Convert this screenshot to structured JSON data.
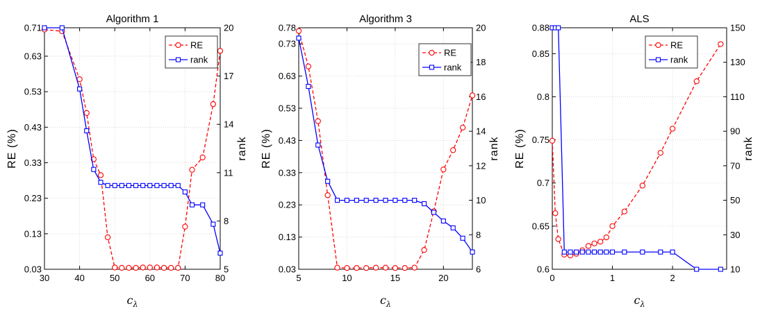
{
  "colors": {
    "re": "#ff0000",
    "rank": "#0000ff",
    "axis": "#000000",
    "grid": "#cfcfcf"
  },
  "chart_data": [
    {
      "type": "line",
      "title": "Algorithm 1",
      "xlabel": "c",
      "xlabel_sub": "λ",
      "ylabel": "RE (%)",
      "y2label": "rank",
      "xlim": [
        30,
        80
      ],
      "ylim": [
        0.03,
        0.71
      ],
      "y2lim": [
        5,
        20
      ],
      "xticks": [
        "30",
        "40",
        "50",
        "60",
        "70",
        "80"
      ],
      "yticks": [
        "0.03",
        "0.13",
        "0.23",
        "0.33",
        "0.43",
        "0.53",
        "0.63",
        "0.71"
      ],
      "y2ticks": [
        "5",
        "8",
        "11",
        "14",
        "17",
        "20"
      ],
      "grid": true,
      "legend": "top-right",
      "x": [
        30,
        35,
        40,
        42,
        44,
        46,
        48,
        50,
        52,
        54,
        56,
        58,
        60,
        62,
        64,
        66,
        68,
        70,
        72,
        75,
        78,
        80
      ],
      "series": [
        {
          "name": "RE",
          "axis": "left",
          "style": "dashed-circle",
          "values": [
            0.705,
            0.7,
            0.565,
            0.47,
            0.34,
            0.295,
            0.12,
            0.035,
            0.034,
            0.034,
            0.034,
            0.035,
            0.035,
            0.035,
            0.034,
            0.034,
            0.034,
            0.15,
            0.31,
            0.345,
            0.495,
            0.645
          ]
        },
        {
          "name": "rank",
          "axis": "right",
          "style": "solid-square",
          "values": [
            20,
            20,
            16.2,
            13.6,
            11.2,
            10.4,
            10.2,
            10.2,
            10.2,
            10.2,
            10.2,
            10.2,
            10.2,
            10.2,
            10.2,
            10.2,
            10.2,
            9.8,
            9,
            9,
            7.8,
            6
          ]
        }
      ]
    },
    {
      "type": "line",
      "title": "Algorithm 3",
      "xlabel": "c",
      "xlabel_sub": "λ",
      "ylabel": "RE (%)",
      "y2label": "rank",
      "xlim": [
        5,
        23
      ],
      "ylim": [
        0.03,
        0.78
      ],
      "y2lim": [
        6,
        20
      ],
      "xticks": [
        "5",
        "10",
        "15",
        "20"
      ],
      "yticks": [
        "0.03",
        "0.13",
        "0.23",
        "0.33",
        "0.43",
        "0.53",
        "0.63",
        "0.73",
        "0.78"
      ],
      "y2ticks": [
        "6",
        "8",
        "10",
        "12",
        "14",
        "16",
        "18",
        "20"
      ],
      "grid": true,
      "legend": "top-right",
      "x": [
        5,
        6,
        7,
        8,
        9,
        10,
        11,
        12,
        13,
        14,
        15,
        16,
        17,
        18,
        19,
        20,
        21,
        22,
        23
      ],
      "series": [
        {
          "name": "RE",
          "axis": "left",
          "style": "dashed-circle",
          "values": [
            0.77,
            0.66,
            0.49,
            0.26,
            0.035,
            0.034,
            0.034,
            0.034,
            0.035,
            0.035,
            0.034,
            0.034,
            0.035,
            0.09,
            0.21,
            0.34,
            0.4,
            0.47,
            0.57
          ]
        },
        {
          "name": "rank",
          "axis": "right",
          "style": "solid-square",
          "values": [
            19.4,
            16.6,
            13.2,
            11.1,
            10,
            10,
            10,
            10,
            10,
            10,
            10,
            10,
            10,
            9.8,
            9.3,
            8.8,
            8.4,
            7.8,
            7
          ]
        }
      ]
    },
    {
      "type": "line",
      "title": "ALS",
      "xlabel": "c",
      "xlabel_sub": "λ",
      "ylabel": "RE (%)",
      "y2label": "rank",
      "xlim": [
        0,
        2.9
      ],
      "ylim": [
        0.6,
        0.88
      ],
      "y2lim": [
        10,
        150
      ],
      "xticks": [
        "0",
        "1",
        "2"
      ],
      "yticks": [
        "0.6",
        "0.65",
        "0.7",
        "0.75",
        "0.8",
        "0.85",
        "0.88"
      ],
      "y2ticks": [
        "10",
        "30",
        "50",
        "70",
        "90",
        "110",
        "130",
        "150"
      ],
      "grid": true,
      "legend": "top-right",
      "x": [
        0,
        0.05,
        0.1,
        0.2,
        0.3,
        0.4,
        0.5,
        0.6,
        0.7,
        0.8,
        0.9,
        1.0,
        1.2,
        1.5,
        1.8,
        2.0,
        2.4,
        2.8
      ],
      "series": [
        {
          "name": "RE",
          "axis": "left",
          "style": "dashed-circle",
          "values": [
            0.749,
            0.665,
            0.635,
            0.617,
            0.616,
            0.618,
            0.622,
            0.627,
            0.63,
            0.632,
            0.637,
            0.65,
            0.667,
            0.697,
            0.735,
            0.763,
            0.818,
            0.861
          ]
        },
        {
          "name": "rank",
          "axis": "right",
          "style": "solid-square",
          "values": [
            150,
            150,
            150,
            20,
            20,
            20,
            20,
            20,
            20,
            20,
            20,
            20,
            20,
            20,
            20,
            20,
            10,
            10
          ]
        }
      ]
    }
  ]
}
